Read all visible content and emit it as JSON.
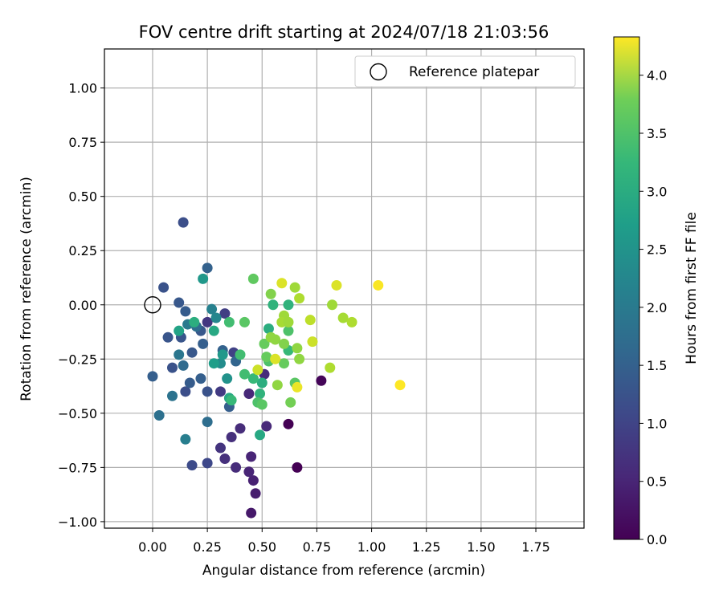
{
  "chart_data": {
    "type": "scatter",
    "title": "FOV centre drift starting at 2024/07/18 21:03:56",
    "xlabel": "Angular distance from reference (arcmin)",
    "ylabel": "Rotation from reference (arcmin)",
    "xlim": [
      -0.22,
      1.97
    ],
    "ylim": [
      -1.03,
      1.18
    ],
    "xticks": [
      "0.00",
      "0.25",
      "0.50",
      "0.75",
      "1.00",
      "1.25",
      "1.50",
      "1.75"
    ],
    "yticks": [
      "1.00",
      "0.75",
      "0.50",
      "0.25",
      "0.00",
      "−0.25",
      "−0.50",
      "−0.75",
      "−1.00"
    ],
    "grid": true,
    "legend": {
      "placement": "upper right",
      "entries": [
        "Reference platepar"
      ]
    },
    "reference_point": {
      "x": 0.0,
      "y": 0.0,
      "marker": "open-circle",
      "label": "Reference platepar"
    },
    "colorbar": {
      "label": "Hours from first FF file",
      "colormap": "viridis",
      "range": [
        0.0,
        4.33
      ],
      "ticks": [
        "0.0",
        "0.5",
        "1.0",
        "1.5",
        "2.0",
        "2.5",
        "3.0",
        "3.5",
        "4.0"
      ]
    },
    "series": [
      {
        "points": [
          {
            "x": 0.62,
            "y": -0.55,
            "c": 0.0
          },
          {
            "x": 0.66,
            "y": -0.75,
            "c": 0.0
          },
          {
            "x": 0.77,
            "y": -0.35,
            "c": 0.05
          },
          {
            "x": 0.45,
            "y": -0.96,
            "c": 0.3
          },
          {
            "x": 0.47,
            "y": -0.87,
            "c": 0.35
          },
          {
            "x": 0.46,
            "y": -0.81,
            "c": 0.4
          },
          {
            "x": 0.44,
            "y": -0.77,
            "c": 0.45
          },
          {
            "x": 0.45,
            "y": -0.7,
            "c": 0.45
          },
          {
            "x": 0.38,
            "y": -0.75,
            "c": 0.55
          },
          {
            "x": 0.33,
            "y": -0.71,
            "c": 0.6
          },
          {
            "x": 0.31,
            "y": -0.66,
            "c": 0.65
          },
          {
            "x": 0.36,
            "y": -0.61,
            "c": 0.6
          },
          {
            "x": 0.4,
            "y": -0.57,
            "c": 0.55
          },
          {
            "x": 0.52,
            "y": -0.56,
            "c": 0.5
          },
          {
            "x": 0.44,
            "y": -0.41,
            "c": 0.5
          },
          {
            "x": 0.51,
            "y": -0.32,
            "c": 0.55
          },
          {
            "x": 0.31,
            "y": -0.4,
            "c": 0.75
          },
          {
            "x": 0.25,
            "y": -0.73,
            "c": 0.95
          },
          {
            "x": 0.18,
            "y": -0.74,
            "c": 1.0
          },
          {
            "x": 0.14,
            "y": 0.38,
            "c": 1.05
          },
          {
            "x": 0.05,
            "y": 0.08,
            "c": 1.1
          },
          {
            "x": 0.25,
            "y": -0.08,
            "c": 0.7
          },
          {
            "x": 0.33,
            "y": -0.04,
            "c": 0.8
          },
          {
            "x": 0.37,
            "y": -0.22,
            "c": 0.85
          },
          {
            "x": 0.25,
            "y": -0.4,
            "c": 1.1
          },
          {
            "x": 0.15,
            "y": -0.4,
            "c": 1.05
          },
          {
            "x": 0.09,
            "y": -0.29,
            "c": 1.1
          },
          {
            "x": 0.0,
            "y": -0.33,
            "c": 1.3
          },
          {
            "x": 0.07,
            "y": -0.15,
            "c": 1.15
          },
          {
            "x": 0.12,
            "y": 0.01,
            "c": 1.2
          },
          {
            "x": 0.15,
            "y": -0.03,
            "c": 1.25
          },
          {
            "x": 0.13,
            "y": -0.15,
            "c": 1.15
          },
          {
            "x": 0.18,
            "y": -0.22,
            "c": 1.2
          },
          {
            "x": 0.22,
            "y": -0.12,
            "c": 1.2
          },
          {
            "x": 0.23,
            "y": -0.18,
            "c": 1.3
          },
          {
            "x": 0.17,
            "y": -0.36,
            "c": 1.25
          },
          {
            "x": 0.22,
            "y": -0.34,
            "c": 1.3
          },
          {
            "x": 0.25,
            "y": 0.17,
            "c": 1.35
          },
          {
            "x": 0.32,
            "y": -0.21,
            "c": 1.35
          },
          {
            "x": 0.38,
            "y": -0.26,
            "c": 1.4
          },
          {
            "x": 0.35,
            "y": -0.47,
            "c": 1.3
          },
          {
            "x": 0.25,
            "y": -0.54,
            "c": 1.55
          },
          {
            "x": 0.03,
            "y": -0.51,
            "c": 1.6
          },
          {
            "x": 0.09,
            "y": -0.42,
            "c": 1.65
          },
          {
            "x": 0.15,
            "y": -0.62,
            "c": 1.85
          },
          {
            "x": 0.14,
            "y": -0.28,
            "c": 1.5
          },
          {
            "x": 0.2,
            "y": -0.1,
            "c": 1.55
          },
          {
            "x": 0.16,
            "y": -0.09,
            "c": 1.75
          },
          {
            "x": 0.12,
            "y": -0.23,
            "c": 1.7
          },
          {
            "x": 0.27,
            "y": -0.02,
            "c": 1.9
          },
          {
            "x": 0.29,
            "y": -0.06,
            "c": 2.0
          },
          {
            "x": 0.31,
            "y": -0.27,
            "c": 2.1
          },
          {
            "x": 0.34,
            "y": -0.34,
            "c": 2.2
          },
          {
            "x": 0.23,
            "y": 0.12,
            "c": 2.3
          },
          {
            "x": 0.32,
            "y": -0.23,
            "c": 2.3
          },
          {
            "x": 0.28,
            "y": -0.27,
            "c": 2.4
          },
          {
            "x": 0.12,
            "y": -0.12,
            "c": 2.5
          },
          {
            "x": 0.28,
            "y": -0.12,
            "c": 2.6
          },
          {
            "x": 0.19,
            "y": -0.08,
            "c": 2.7
          },
          {
            "x": 0.35,
            "y": -0.43,
            "c": 2.6
          },
          {
            "x": 0.49,
            "y": -0.6,
            "c": 2.6
          },
          {
            "x": 0.5,
            "y": -0.36,
            "c": 2.7
          },
          {
            "x": 0.49,
            "y": -0.41,
            "c": 2.8
          },
          {
            "x": 0.46,
            "y": -0.34,
            "c": 2.9
          },
          {
            "x": 0.36,
            "y": -0.44,
            "c": 2.9
          },
          {
            "x": 0.35,
            "y": -0.08,
            "c": 3.0
          },
          {
            "x": 0.42,
            "y": -0.32,
            "c": 3.0
          },
          {
            "x": 0.4,
            "y": -0.23,
            "c": 3.0
          },
          {
            "x": 0.48,
            "y": -0.45,
            "c": 3.1
          },
          {
            "x": 0.5,
            "y": -0.46,
            "c": 3.2
          },
          {
            "x": 0.53,
            "y": -0.11,
            "c": 2.7
          },
          {
            "x": 0.55,
            "y": 0.0,
            "c": 2.8
          },
          {
            "x": 0.62,
            "y": -0.21,
            "c": 2.9
          },
          {
            "x": 0.62,
            "y": 0.0,
            "c": 2.8
          },
          {
            "x": 0.62,
            "y": -0.12,
            "c": 3.1
          },
          {
            "x": 0.65,
            "y": -0.36,
            "c": 3.2
          },
          {
            "x": 0.6,
            "y": -0.27,
            "c": 3.3
          },
          {
            "x": 0.53,
            "y": -0.26,
            "c": 3.1
          },
          {
            "x": 0.52,
            "y": -0.24,
            "c": 3.3
          },
          {
            "x": 0.51,
            "y": -0.18,
            "c": 3.3
          },
          {
            "x": 0.42,
            "y": -0.08,
            "c": 3.2
          },
          {
            "x": 0.46,
            "y": 0.12,
            "c": 3.25
          },
          {
            "x": 0.54,
            "y": 0.05,
            "c": 3.5
          },
          {
            "x": 0.63,
            "y": -0.45,
            "c": 3.4
          },
          {
            "x": 0.57,
            "y": -0.37,
            "c": 3.6
          },
          {
            "x": 0.54,
            "y": -0.15,
            "c": 3.6
          },
          {
            "x": 0.56,
            "y": -0.16,
            "c": 3.6
          },
          {
            "x": 0.6,
            "y": -0.05,
            "c": 3.7
          },
          {
            "x": 0.59,
            "y": -0.08,
            "c": 3.75
          },
          {
            "x": 0.62,
            "y": -0.08,
            "c": 3.7
          },
          {
            "x": 0.66,
            "y": -0.2,
            "c": 3.6
          },
          {
            "x": 0.67,
            "y": -0.25,
            "c": 3.6
          },
          {
            "x": 0.6,
            "y": -0.18,
            "c": 3.5
          },
          {
            "x": 0.65,
            "y": 0.08,
            "c": 3.7
          },
          {
            "x": 0.67,
            "y": 0.03,
            "c": 3.8
          },
          {
            "x": 0.72,
            "y": -0.07,
            "c": 3.9
          },
          {
            "x": 0.73,
            "y": -0.17,
            "c": 4.0
          },
          {
            "x": 0.82,
            "y": 0.0,
            "c": 3.7
          },
          {
            "x": 0.81,
            "y": -0.29,
            "c": 3.8
          },
          {
            "x": 0.87,
            "y": -0.06,
            "c": 3.75
          },
          {
            "x": 0.91,
            "y": -0.08,
            "c": 3.8
          },
          {
            "x": 0.84,
            "y": 0.09,
            "c": 4.1
          },
          {
            "x": 0.59,
            "y": 0.1,
            "c": 4.1
          },
          {
            "x": 0.66,
            "y": -0.38,
            "c": 4.2
          },
          {
            "x": 0.48,
            "y": -0.3,
            "c": 4.0
          },
          {
            "x": 0.56,
            "y": -0.25,
            "c": 4.1
          },
          {
            "x": 1.03,
            "y": 0.09,
            "c": 4.3
          },
          {
            "x": 1.13,
            "y": -0.37,
            "c": 4.33
          }
        ]
      }
    ]
  }
}
